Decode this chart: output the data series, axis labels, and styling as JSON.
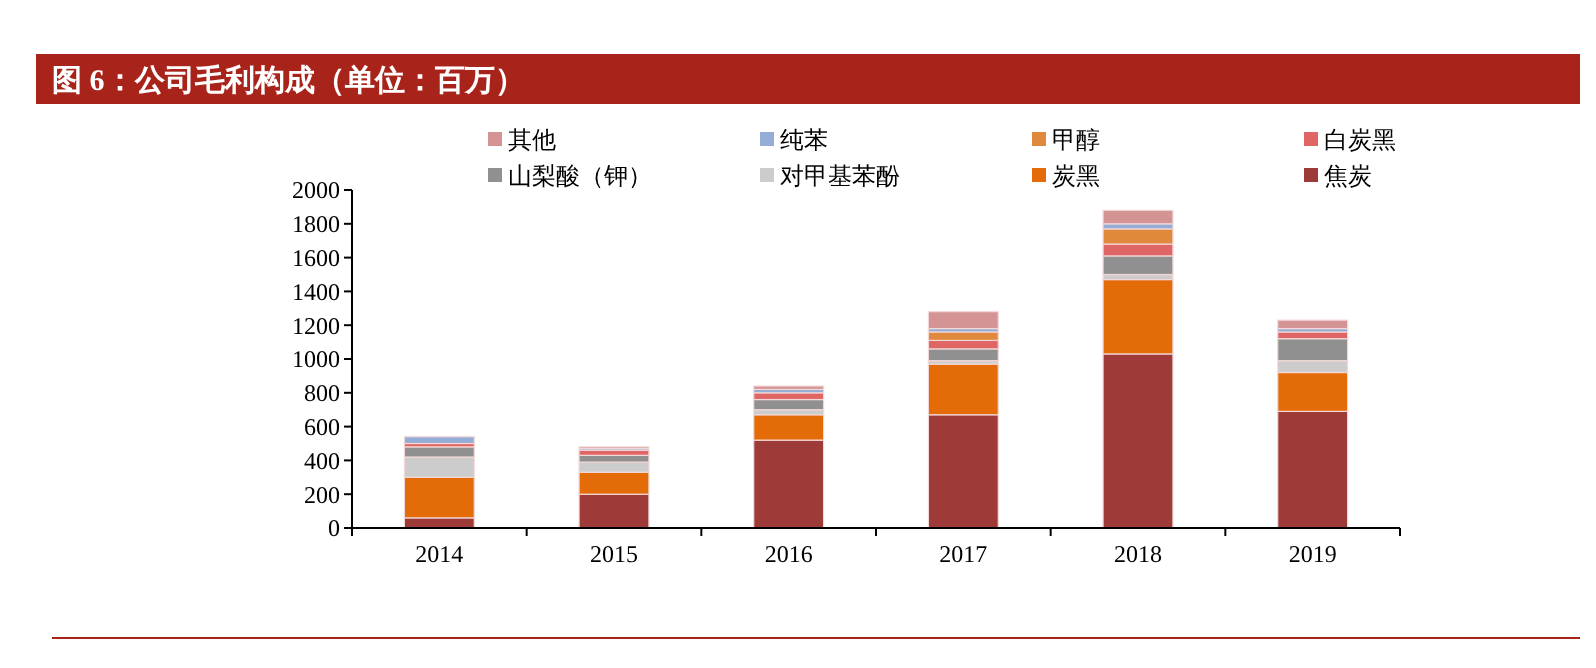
{
  "chart_data": {
    "type": "bar",
    "stacked": true,
    "title": "图 6：公司毛利构成（单位：百万）",
    "categories": [
      "2014",
      "2015",
      "2016",
      "2017",
      "2018",
      "2019"
    ],
    "series": [
      {
        "name": "焦炭",
        "color": "#9e3a38",
        "values": [
          60,
          200,
          520,
          670,
          1030,
          690
        ]
      },
      {
        "name": "炭黑",
        "color": "#e36c09",
        "values": [
          240,
          130,
          150,
          300,
          440,
          230
        ]
      },
      {
        "name": "对甲基苯酚",
        "color": "#cccccc",
        "values": [
          120,
          60,
          30,
          20,
          30,
          70
        ]
      },
      {
        "name": "山梨酸（钾）",
        "color": "#909090",
        "values": [
          60,
          40,
          60,
          70,
          110,
          130
        ]
      },
      {
        "name": "白炭黑",
        "color": "#e06666",
        "values": [
          20,
          30,
          40,
          50,
          70,
          40
        ]
      },
      {
        "name": "甲醇",
        "color": "#e0883c",
        "values": [
          0,
          0,
          0,
          50,
          90,
          0
        ]
      },
      {
        "name": "纯苯",
        "color": "#94add6",
        "values": [
          40,
          10,
          20,
          20,
          30,
          20
        ]
      },
      {
        "name": "其他",
        "color": "#d49494",
        "values": [
          0,
          10,
          20,
          100,
          80,
          50
        ]
      }
    ],
    "ylim": [
      0,
      2000
    ],
    "yticks": [
      0,
      200,
      400,
      600,
      800,
      1000,
      1200,
      1400,
      1600,
      1800,
      2000
    ],
    "grid": false,
    "legend": "top"
  }
}
